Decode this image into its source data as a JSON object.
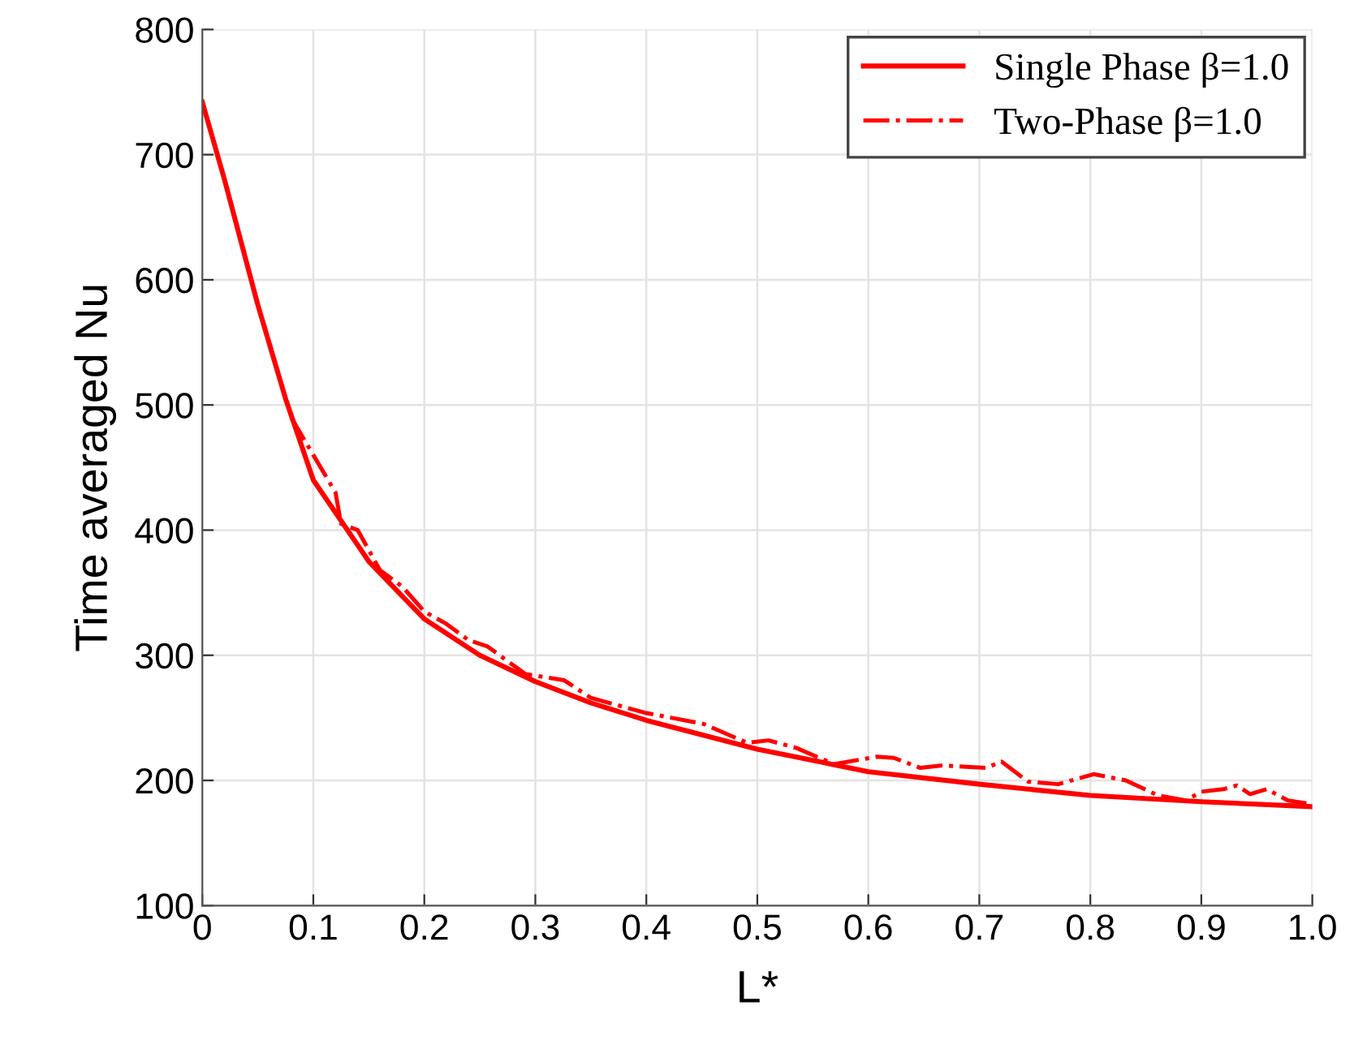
{
  "chart_data": {
    "type": "line",
    "xlabel": "L*",
    "ylabel": "Time averaged Nu",
    "xlim": [
      0,
      1
    ],
    "ylim": [
      100,
      800
    ],
    "xticks": [
      0,
      0.1,
      0.2,
      0.3,
      0.4,
      0.5,
      0.6,
      0.7,
      0.8,
      0.9,
      {
        "value": 1,
        "label": "1.0"
      }
    ],
    "yticks": [
      100,
      200,
      300,
      400,
      500,
      600,
      700,
      800
    ],
    "grid": true,
    "legend": "top right",
    "marker": "none",
    "series": [
      {
        "name": "Single Phase β=1.0",
        "color": "#ff0000",
        "line_style": "solid",
        "x": [
          0,
          0.02,
          0.05,
          0.075,
          0.1,
          0.15,
          0.2,
          0.25,
          0.3,
          0.35,
          0.4,
          0.5,
          0.6,
          0.7,
          0.8,
          0.9,
          1.0
        ],
        "values": [
          742,
          680,
          580,
          505,
          440,
          375,
          329,
          300,
          279,
          262,
          248,
          225,
          207,
          197,
          188,
          183,
          179
        ]
      },
      {
        "name": "Two-Phase β=1.0",
        "color": "#ff0000",
        "line_style": "dashdot",
        "x": [
          0.08,
          0.1,
          0.12,
          0.125,
          0.14,
          0.16,
          0.18,
          0.2,
          0.22,
          0.24,
          0.257,
          0.291,
          0.326,
          0.35,
          0.399,
          0.423,
          0.452,
          0.491,
          0.51,
          0.535,
          0.569,
          0.608,
          0.623,
          0.647,
          0.667,
          0.706,
          0.72,
          0.744,
          0.771,
          0.803,
          0.832,
          0.861,
          0.886,
          0.9,
          0.92,
          0.932,
          0.944,
          0.959,
          0.978,
          1.0
        ],
        "values": [
          490,
          460,
          430,
          405,
          400,
          368,
          355,
          335,
          325,
          312,
          307,
          285,
          280,
          266,
          254,
          250,
          245,
          230,
          232,
          226,
          213,
          219,
          218,
          210,
          212,
          210,
          215,
          199,
          197,
          205,
          200,
          188,
          184,
          191,
          193,
          196,
          189,
          193,
          184,
          181
        ]
      }
    ]
  }
}
